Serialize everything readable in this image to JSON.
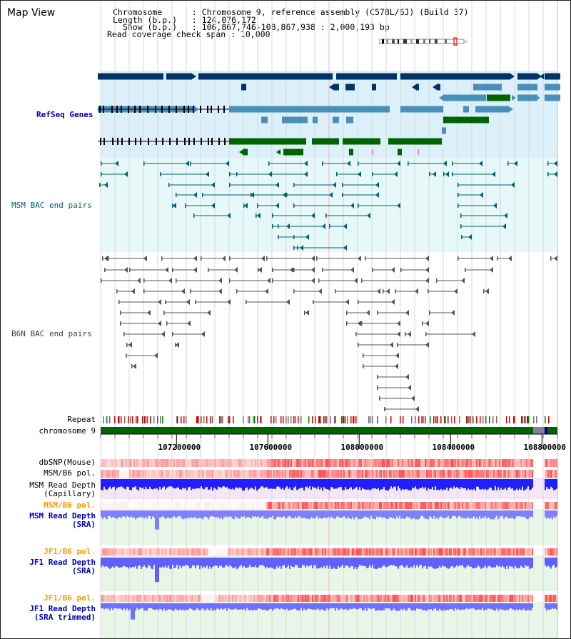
{
  "header": {
    "title": "Map View",
    "info": [
      {
        "key": "Chromosome      ",
        "value": "Chromosome 9, reference assembly (C57BL/6J) (Build 37)"
      },
      {
        "key": "Length (b.p.)   ",
        "value": "124,076,172"
      },
      {
        "key": "  Show (b.p.)   ",
        "value": "106,867,746-108,867,938 : 2,000,193 bp"
      },
      {
        "key": "Read coverage check span",
        "value": "10,000"
      }
    ]
  },
  "tracks": {
    "refseq": {
      "label": "RefSeq Genes",
      "color": "#0000c0"
    },
    "msm_bac": {
      "label": "MSM BAC end pairs",
      "color": "#006080"
    },
    "b6n_bac": {
      "label": "B6N BAC end pairs",
      "color": "#404040"
    },
    "repeat": {
      "label": "Repeat"
    },
    "chromosome": {
      "label": "chromosome 9"
    },
    "dbsnp": {
      "label": "dbSNP(Mouse)"
    },
    "msm_b6_pol": {
      "label": "MSM/B6 pol."
    },
    "msm_depth_cap": {
      "label1": "MSM Read Depth",
      "label2": "(Capillary)"
    },
    "msm_b6_pol_2": {
      "label": "MSM/B6 pol."
    },
    "msm_depth_sra": {
      "label1": "MSM Read Depth",
      "label2": "(SRA)"
    },
    "jf1_b6_pol": {
      "label": "JF1/B6 pol."
    },
    "jf1_depth_sra": {
      "label1": "JF1 Read Depth",
      "label2": "(SRA)"
    },
    "jf1_b6_pol_2": {
      "label": "JF1/B6 pol."
    },
    "jf1_depth_trim": {
      "label1": "JF1 Read Depth",
      "label2": "(SRA trimmed)"
    }
  },
  "axis": {
    "start": 106867746,
    "end": 108867938,
    "ticks": [
      "107200000",
      "107600000",
      "108000000",
      "108400000",
      "108800000"
    ],
    "tick_values": [
      107200000,
      107600000,
      108000000,
      108400000,
      108800000
    ]
  },
  "colors": {
    "dark_gene": "#003366",
    "mid_gene": "#4a8fb8",
    "green_gene": "#006400",
    "refseq_bg": "#dcf0fa",
    "msm_bg": "#e6f9f8",
    "chrom_bar": "#006400",
    "snp_red": "#ff4040",
    "depth_blue": "#2020ff",
    "depth_light": "#8080ff",
    "pol_label": "#ff9900",
    "blue_label": "#0000c0"
  }
}
